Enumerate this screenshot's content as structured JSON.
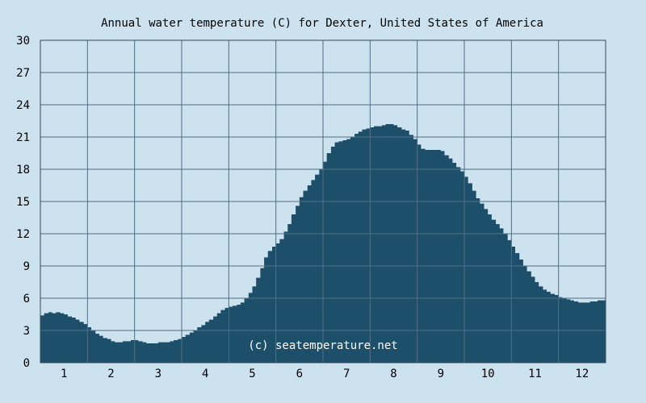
{
  "chart_data": {
    "type": "area",
    "title": "Annual water temperature (C) for Dexter, United States of America",
    "xlabel": "",
    "ylabel": "",
    "ylim": [
      0,
      30
    ],
    "xlim": [
      0.5,
      12.5
    ],
    "y_ticks": [
      0,
      3,
      6,
      9,
      12,
      15,
      18,
      21,
      24,
      27,
      30
    ],
    "x_ticks": [
      1,
      2,
      3,
      4,
      5,
      6,
      7,
      8,
      9,
      10,
      11,
      12
    ],
    "grid": true,
    "watermark": "(c) seatemperature.net",
    "colors": {
      "background": "#cce2ef",
      "fill": "#1d4f6b",
      "grid": "#4f6f85",
      "axis": "#33495a"
    },
    "series": [
      {
        "x": [
          0.5,
          0.58,
          0.67,
          0.75,
          0.83,
          0.92,
          1.0,
          1.08,
          1.17,
          1.25,
          1.33,
          1.42,
          1.5,
          1.58,
          1.67,
          1.75,
          1.83,
          1.92,
          2.0,
          2.08,
          2.17,
          2.25,
          2.33,
          2.42,
          2.5,
          2.58,
          2.67,
          2.75,
          2.83,
          2.92,
          3.0,
          3.08,
          3.17,
          3.25,
          3.33,
          3.42,
          3.5,
          3.58,
          3.67,
          3.75,
          3.83,
          3.92,
          4.0,
          4.08,
          4.17,
          4.25,
          4.33,
          4.42,
          4.5,
          4.58,
          4.67,
          4.75,
          4.83,
          4.92,
          5.0,
          5.08,
          5.17,
          5.25,
          5.33,
          5.42,
          5.5,
          5.58,
          5.67,
          5.75,
          5.83,
          5.92,
          6.0,
          6.08,
          6.17,
          6.25,
          6.33,
          6.42,
          6.5,
          6.58,
          6.67,
          6.75,
          6.83,
          6.92,
          7.0,
          7.08,
          7.17,
          7.25,
          7.33,
          7.42,
          7.5,
          7.58,
          7.67,
          7.75,
          7.83,
          7.92,
          8.0,
          8.08,
          8.17,
          8.25,
          8.33,
          8.42,
          8.5,
          8.58,
          8.67,
          8.75,
          8.83,
          8.92,
          9.0,
          9.08,
          9.17,
          9.25,
          9.33,
          9.42,
          9.5,
          9.58,
          9.67,
          9.75,
          9.83,
          9.92,
          10.0,
          10.08,
          10.17,
          10.25,
          10.33,
          10.42,
          10.5,
          10.58,
          10.67,
          10.75,
          10.83,
          10.92,
          11.0,
          11.08,
          11.17,
          11.25,
          11.33,
          11.42,
          11.5,
          11.58,
          11.67,
          11.75,
          11.83,
          11.92,
          12.0,
          12.08,
          12.17,
          12.25,
          12.33,
          12.42,
          12.5
        ],
        "y": [
          4.4,
          4.6,
          4.7,
          4.6,
          4.7,
          4.6,
          4.5,
          4.3,
          4.2,
          4.0,
          3.8,
          3.6,
          3.3,
          3.0,
          2.7,
          2.5,
          2.3,
          2.2,
          2.0,
          1.9,
          1.9,
          2.0,
          2.0,
          2.1,
          2.1,
          2.0,
          1.9,
          1.8,
          1.8,
          1.8,
          1.9,
          1.9,
          1.9,
          2.0,
          2.1,
          2.2,
          2.4,
          2.6,
          2.8,
          3.0,
          3.3,
          3.5,
          3.8,
          4.0,
          4.3,
          4.6,
          4.9,
          5.1,
          5.2,
          5.3,
          5.4,
          5.6,
          6.0,
          6.5,
          7.1,
          7.9,
          8.8,
          9.8,
          10.4,
          10.8,
          11.1,
          11.5,
          12.2,
          12.9,
          13.8,
          14.6,
          15.4,
          16.0,
          16.5,
          17.0,
          17.5,
          18.0,
          18.7,
          19.5,
          20.1,
          20.5,
          20.6,
          20.7,
          20.8,
          21.0,
          21.3,
          21.5,
          21.7,
          21.8,
          21.9,
          22.0,
          22.0,
          22.1,
          22.2,
          22.2,
          22.1,
          21.9,
          21.7,
          21.6,
          21.2,
          20.8,
          20.3,
          19.9,
          19.8,
          19.8,
          19.8,
          19.8,
          19.7,
          19.3,
          19.0,
          18.6,
          18.2,
          17.8,
          17.3,
          16.7,
          16.0,
          15.3,
          14.8,
          14.3,
          13.8,
          13.3,
          12.9,
          12.5,
          12.0,
          11.4,
          10.8,
          10.2,
          9.6,
          9.0,
          8.5,
          8.0,
          7.5,
          7.1,
          6.8,
          6.6,
          6.4,
          6.3,
          6.1,
          6.0,
          5.9,
          5.8,
          5.7,
          5.6,
          5.6,
          5.6,
          5.7,
          5.7,
          5.8,
          5.8,
          5.8
        ]
      }
    ]
  }
}
